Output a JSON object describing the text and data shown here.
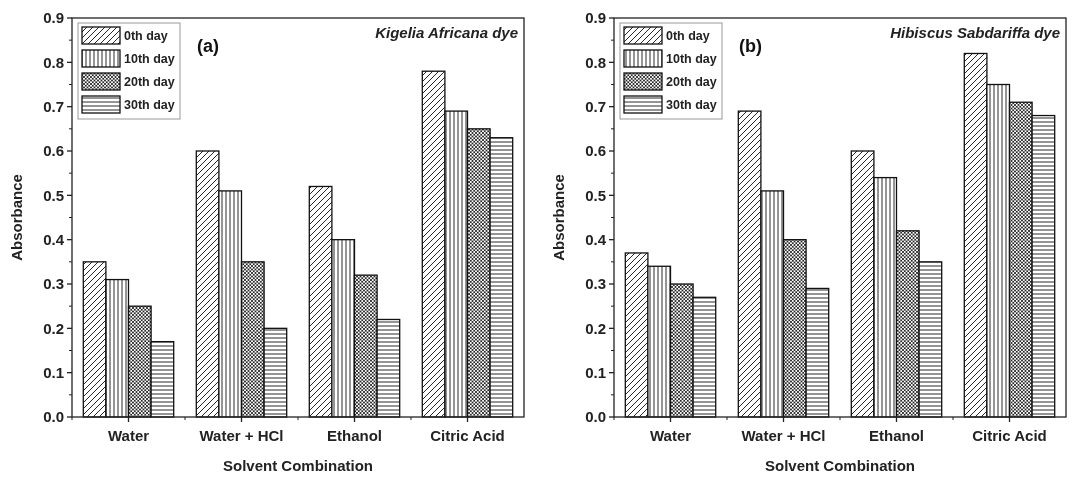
{
  "chart_data": [
    {
      "type": "bar",
      "title": "Kigelia Africana dye",
      "xlabel": "Solvent Combination",
      "ylabel": "Absorbance",
      "annotations": [
        "(a)"
      ],
      "categories": [
        "Water",
        "Water + HCl",
        "Ethanol",
        "Citric Acid"
      ],
      "series": [
        {
          "name": "0th day",
          "color": "#111111",
          "values": [
            0.35,
            0.6,
            0.52,
            0.78
          ]
        },
        {
          "name": "10th day",
          "color": "#111111",
          "values": [
            0.31,
            0.51,
            0.4,
            0.69
          ]
        },
        {
          "name": "20th day",
          "color": "#111111",
          "values": [
            0.25,
            0.35,
            0.32,
            0.65
          ]
        },
        {
          "name": "30th day",
          "color": "#111111",
          "values": [
            0.17,
            0.2,
            0.22,
            0.63
          ]
        }
      ],
      "ylim": [
        0,
        0.9
      ],
      "yticks": [
        {
          "value": 0,
          "label": "0.0"
        },
        0.1,
        0.2,
        0.3,
        0.4,
        0.5,
        0.6,
        0.7,
        0.8,
        0.9
      ],
      "grid": false,
      "legend": "top left"
    },
    {
      "type": "bar",
      "title": "Hibiscus Sabdariffa dye",
      "xlabel": "Solvent Combination",
      "ylabel": "Absorbance",
      "annotations": [
        "(b)"
      ],
      "categories": [
        "Water",
        "Water + HCl",
        "Ethanol",
        "Citric Acid"
      ],
      "series": [
        {
          "name": "0th day",
          "color": "#111111",
          "values": [
            0.37,
            0.69,
            0.6,
            0.82
          ]
        },
        {
          "name": "10th day",
          "color": "#111111",
          "values": [
            0.34,
            0.51,
            0.54,
            0.75
          ]
        },
        {
          "name": "20th day",
          "color": "#111111",
          "values": [
            0.3,
            0.4,
            0.42,
            0.71
          ]
        },
        {
          "name": "30th day",
          "color": "#111111",
          "values": [
            0.27,
            0.29,
            0.35,
            0.68
          ]
        }
      ],
      "ylim": [
        0,
        0.9
      ],
      "yticks": [
        {
          "value": 0,
          "label": "0.0"
        },
        0.1,
        0.2,
        0.3,
        0.4,
        0.5,
        0.6,
        0.7,
        0.8,
        0.9
      ],
      "grid": false,
      "legend": "top left"
    }
  ]
}
